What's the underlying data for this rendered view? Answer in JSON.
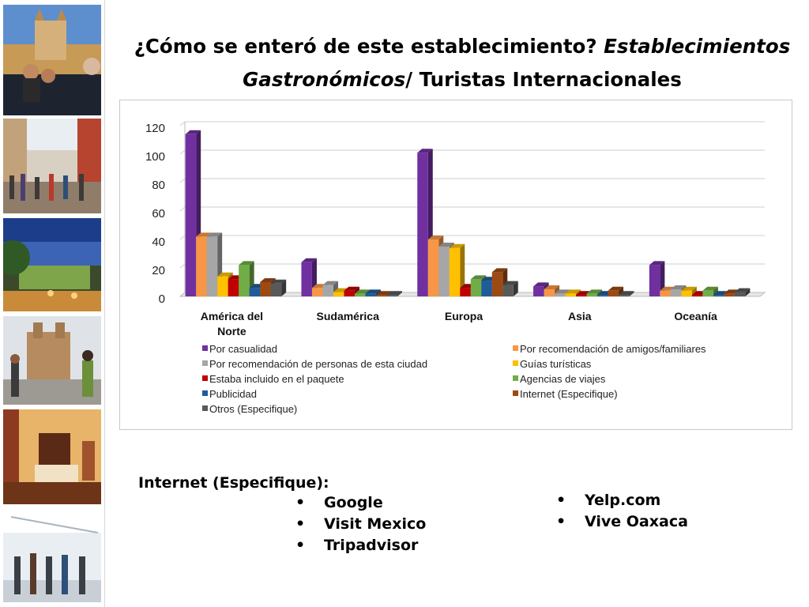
{
  "slide": {
    "title_part1": "¿Cómo se enteró de este establecimiento? ",
    "title_part2": "Establecimientos Gastronómicos",
    "title_part3": "/ Turistas Internacionales"
  },
  "sidebar": {
    "photos": [
      {
        "icon": "cathedral-pool-photo-icon",
        "colors": [
          "#4e7fbf",
          "#c79a55",
          "#2b2b2b"
        ]
      },
      {
        "icon": "colonial-street-crowd-photo-icon",
        "colors": [
          "#d9d0c4",
          "#8f7d6a",
          "#3d3a37"
        ]
      },
      {
        "icon": "night-garden-terrace-photo-icon",
        "colors": [
          "#1c3e8a",
          "#7ea54a",
          "#c98a3a"
        ]
      },
      {
        "icon": "church-plaza-tourists-photo-icon",
        "colors": [
          "#dfe3e8",
          "#b58b5f",
          "#3b3b3b"
        ]
      },
      {
        "icon": "hotel-room-photo-icon",
        "colors": [
          "#e7b46a",
          "#8d3a1f",
          "#5a2a16"
        ]
      },
      {
        "icon": "airport-travelers-photo-icon",
        "colors": [
          "#e9eef3",
          "#a9b4bf",
          "#3a3f45"
        ]
      }
    ]
  },
  "chart_data": {
    "type": "bar",
    "categories": [
      "América del Norte",
      "Sudamérica",
      "Europa",
      "Asia",
      "Oceanía"
    ],
    "ylim": [
      0,
      120
    ],
    "yticks": [
      "0",
      "20",
      "40",
      "60",
      "80",
      "100",
      "120"
    ],
    "grid": true,
    "legend_position": "bottom",
    "series": [
      {
        "name": "Por casualidad",
        "color": "#7030a0",
        "values": [
          114,
          24,
          101,
          7,
          22
        ]
      },
      {
        "name": "Por recomendación de amigos/familiares",
        "color": "#f79646",
        "values": [
          42,
          6,
          40,
          5,
          4
        ]
      },
      {
        "name": "Por recomendación de personas de esta ciudad",
        "color": "#a6a6a6",
        "values": [
          42,
          8,
          35,
          2,
          5
        ]
      },
      {
        "name": "Guías turísticas",
        "color": "#ffc000",
        "values": [
          14,
          3,
          34,
          2,
          4
        ]
      },
      {
        "name": "Estaba incluido en el paquete",
        "color": "#c00000",
        "values": [
          12,
          4,
          6,
          1,
          1
        ]
      },
      {
        "name": "Agencias de viajes",
        "color": "#70ad47",
        "values": [
          22,
          2,
          12,
          2,
          4
        ]
      },
      {
        "name": "Publicidad",
        "color": "#1f5c99",
        "values": [
          6,
          2,
          11,
          1,
          1
        ]
      },
      {
        "name": "Internet (Especifique)",
        "color": "#9c4a14",
        "values": [
          10,
          1,
          17,
          4,
          2
        ]
      },
      {
        "name": "Otros (Especifique)",
        "color": "#595959",
        "values": [
          9,
          1,
          8,
          1,
          3
        ]
      }
    ]
  },
  "notes": {
    "heading": "Internet (Especifique):",
    "list_left": [
      "Google",
      "Visit Mexico",
      "Tripadvisor"
    ],
    "list_right": [
      "Yelp.com",
      "Vive Oaxaca"
    ]
  }
}
